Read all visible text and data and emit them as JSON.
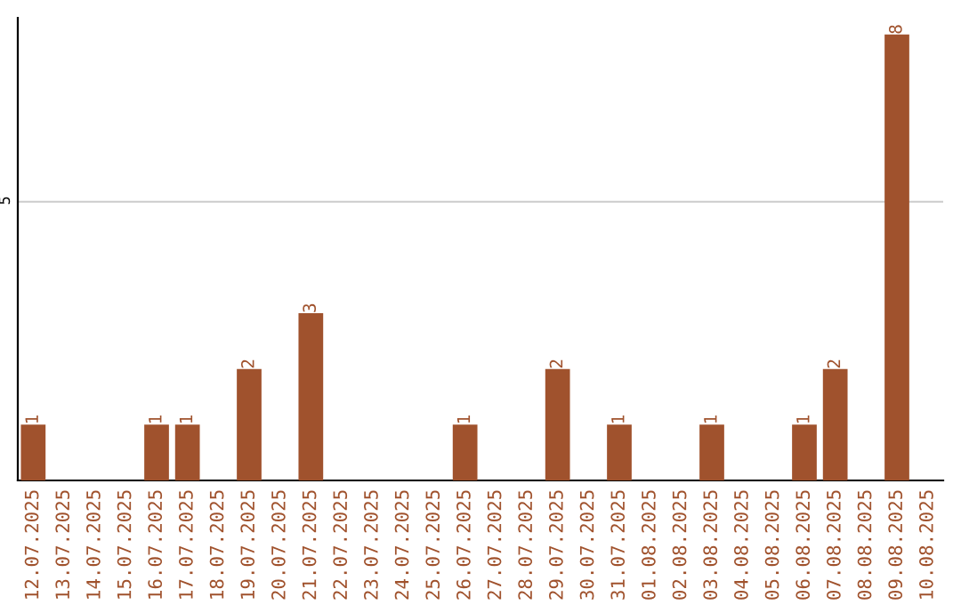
{
  "chart_data": {
    "type": "bar",
    "categories": [
      "12.07.2025",
      "13.07.2025",
      "14.07.2025",
      "15.07.2025",
      "16.07.2025",
      "17.07.2025",
      "18.07.2025",
      "19.07.2025",
      "20.07.2025",
      "21.07.2025",
      "22.07.2025",
      "23.07.2025",
      "24.07.2025",
      "25.07.2025",
      "26.07.2025",
      "27.07.2025",
      "28.07.2025",
      "29.07.2025",
      "30.07.2025",
      "31.07.2025",
      "01.08.2025",
      "02.08.2025",
      "03.08.2025",
      "04.08.2025",
      "05.08.2025",
      "06.08.2025",
      "07.08.2025",
      "08.08.2025",
      "09.08.2025",
      "10.08.2025"
    ],
    "values": [
      1,
      null,
      null,
      null,
      1,
      1,
      null,
      2,
      null,
      3,
      null,
      null,
      null,
      null,
      1,
      null,
      null,
      2,
      null,
      1,
      null,
      null,
      1,
      null,
      null,
      1,
      2,
      null,
      8,
      null
    ],
    "color": "#a0522d",
    "ylim": [
      0,
      8.3
    ],
    "yticks": [
      5
    ],
    "grid": "y",
    "data_labels": true
  }
}
